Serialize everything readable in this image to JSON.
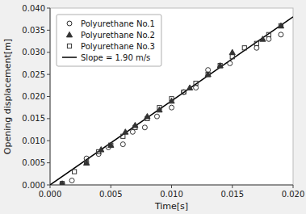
{
  "chart_data": {
    "type": "scatter",
    "xlabel": "Time[s]",
    "ylabel": "Opening displacement[m]",
    "xlim": [
      0.0,
      0.02
    ],
    "ylim": [
      0.0,
      0.04
    ],
    "xticks": [
      {
        "value": 0.0,
        "label": "0.000"
      },
      0.005,
      {
        "value": 0.01,
        "label": "0.010"
      },
      0.015,
      {
        "value": 0.02,
        "label": "0.020"
      }
    ],
    "yticks": [
      {
        "value": 0.0,
        "label": "0.000"
      },
      0.005,
      {
        "value": 0.01,
        "label": "0.010"
      },
      0.015,
      {
        "value": 0.02,
        "label": "0.020"
      },
      0.025,
      {
        "value": 0.03,
        "label": "0.030"
      },
      0.035,
      {
        "value": 0.04,
        "label": "0.040"
      }
    ],
    "grid": false,
    "legend": "upper left",
    "series": [
      {
        "name": "Polyurethane No.1",
        "type": "scatter",
        "marker": "open-circle",
        "color": "#333333",
        "x": [
          0.001,
          0.0018,
          0.003,
          0.004,
          0.0048,
          0.006,
          0.0068,
          0.0078,
          0.0088,
          0.01,
          0.011,
          0.012,
          0.013,
          0.0148,
          0.017,
          0.018,
          0.019
        ],
        "values": [
          0.0003,
          0.001,
          0.006,
          0.007,
          0.0085,
          0.0092,
          0.012,
          0.013,
          0.0155,
          0.0175,
          0.021,
          0.022,
          0.026,
          0.0275,
          0.031,
          0.033,
          0.034
        ]
      },
      {
        "name": "Polyurethane No.2",
        "type": "scatter",
        "marker": "triangle",
        "color": "#333333",
        "x": [
          0.001,
          0.003,
          0.0042,
          0.005,
          0.0062,
          0.007,
          0.008,
          0.009,
          0.01,
          0.0115,
          0.013,
          0.014,
          0.015,
          0.0175,
          0.019
        ],
        "values": [
          0.0003,
          0.005,
          0.008,
          0.009,
          0.012,
          0.0135,
          0.0155,
          0.017,
          0.019,
          0.022,
          0.025,
          0.027,
          0.03,
          0.033,
          0.036
        ]
      },
      {
        "name": "Polyurethane No.3",
        "type": "scatter",
        "marker": "open-square",
        "color": "#333333",
        "x": [
          0.001,
          0.002,
          0.003,
          0.004,
          0.005,
          0.006,
          0.007,
          0.008,
          0.009,
          0.01,
          0.011,
          0.012,
          0.013,
          0.014,
          0.015,
          0.016,
          0.017,
          0.018,
          0.019
        ],
        "values": [
          0.0003,
          0.003,
          0.005,
          0.0075,
          0.009,
          0.011,
          0.013,
          0.015,
          0.0175,
          0.0195,
          0.021,
          0.023,
          0.025,
          0.027,
          0.029,
          0.031,
          0.032,
          0.034,
          0.036
        ]
      },
      {
        "name": "Slope = 1.90 m/s",
        "type": "line",
        "line_style": "solid",
        "color": "black",
        "x": [
          0.0,
          0.02
        ],
        "values": [
          0.0,
          0.038
        ]
      }
    ]
  }
}
